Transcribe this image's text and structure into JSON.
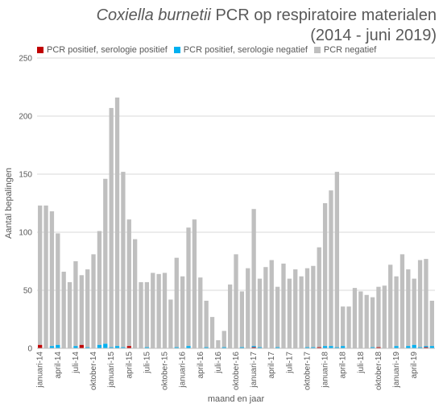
{
  "chart_data": {
    "type": "bar",
    "stacked": true,
    "title_italic": "Coxiella burnetii",
    "title_rest": "PCR op respiratoire materialen",
    "subtitle": "(2014 - juni 2019)",
    "xlabel": "maand en jaar",
    "ylabel": "Aantal bepalingen",
    "ylim": [
      0,
      250
    ],
    "yticks": [
      0,
      50,
      100,
      150,
      200,
      250
    ],
    "grid": true,
    "legend_position": "top-left",
    "x_tick_labels": [
      {
        "index": 0,
        "label": "januari-14"
      },
      {
        "index": 3,
        "label": "april-14"
      },
      {
        "index": 6,
        "label": "juli-14"
      },
      {
        "index": 9,
        "label": "oktober-14"
      },
      {
        "index": 12,
        "label": "januari-15"
      },
      {
        "index": 15,
        "label": "april-15"
      },
      {
        "index": 18,
        "label": "juli-15"
      },
      {
        "index": 21,
        "label": "oktober-15"
      },
      {
        "index": 24,
        "label": "januari-16"
      },
      {
        "index": 27,
        "label": "april-16"
      },
      {
        "index": 30,
        "label": "juli-16"
      },
      {
        "index": 33,
        "label": "oktober-16"
      },
      {
        "index": 36,
        "label": "januari-17"
      },
      {
        "index": 39,
        "label": "april-17"
      },
      {
        "index": 42,
        "label": "juli-17"
      },
      {
        "index": 45,
        "label": "oktober-17"
      },
      {
        "index": 48,
        "label": "januari-18"
      },
      {
        "index": 51,
        "label": "april-18"
      },
      {
        "index": 54,
        "label": "juli-18"
      },
      {
        "index": 57,
        "label": "oktober-18"
      },
      {
        "index": 60,
        "label": "januari-19"
      },
      {
        "index": 63,
        "label": "april-19"
      }
    ],
    "series": [
      {
        "name": "PCR positief, serologie positief",
        "color": "#c00000",
        "values": [
          3,
          0,
          0,
          0,
          0,
          0,
          0,
          3,
          0,
          0,
          0,
          0,
          0,
          0,
          0,
          2,
          0,
          0,
          0,
          0,
          0,
          0,
          0,
          0,
          0,
          0,
          0,
          0,
          0,
          0,
          0,
          0,
          0,
          0,
          0,
          0,
          1,
          0,
          0,
          0,
          0,
          0,
          0,
          0,
          0,
          0,
          0,
          1,
          0,
          0,
          0,
          0,
          0,
          0,
          0,
          0,
          0,
          1,
          0,
          0,
          0,
          0,
          0,
          0,
          0,
          1,
          0
        ]
      },
      {
        "name": "PCR positief, serologie negatief",
        "color": "#00b0f0",
        "values": [
          0,
          0,
          2,
          3,
          0,
          0,
          2,
          0,
          1,
          0,
          3,
          4,
          1,
          2,
          1,
          0,
          0,
          0,
          1,
          0,
          0,
          0,
          0,
          1,
          0,
          2,
          0,
          0,
          1,
          0,
          0,
          1,
          0,
          0,
          1,
          0,
          1,
          1,
          0,
          0,
          1,
          0,
          0,
          0,
          0,
          1,
          1,
          0,
          2,
          2,
          1,
          2,
          0,
          0,
          0,
          0,
          1,
          0,
          0,
          0,
          2,
          0,
          2,
          3,
          1,
          1,
          2
        ]
      },
      {
        "name": "PCR negatief",
        "color": "#bfbfbf",
        "values": [
          120,
          123,
          116,
          96,
          66,
          57,
          73,
          60,
          67,
          81,
          98,
          142,
          206,
          214,
          151,
          109,
          94,
          57,
          56,
          65,
          64,
          65,
          42,
          77,
          62,
          102,
          111,
          61,
          40,
          27,
          7,
          14,
          55,
          81,
          48,
          69,
          118,
          59,
          70,
          76,
          52,
          73,
          60,
          68,
          62,
          68,
          70,
          86,
          123,
          134,
          151,
          34,
          36,
          52,
          49,
          46,
          43,
          52,
          54,
          72,
          60,
          81,
          66,
          57,
          75,
          75,
          39
        ]
      }
    ]
  }
}
